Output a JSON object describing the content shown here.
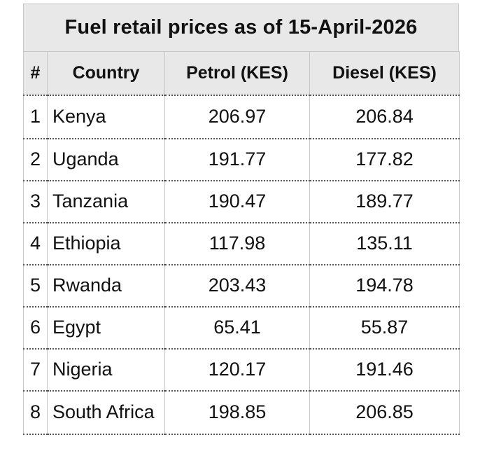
{
  "chart_data": {
    "type": "table",
    "title": "Fuel retail prices as of 15-April-2026",
    "columns": [
      "#",
      "Country",
      "Petrol (KES)",
      "Diesel (KES)"
    ],
    "rows": [
      [
        "1",
        "Kenya",
        "206.97",
        "206.84"
      ],
      [
        "2",
        "Uganda",
        "191.77",
        "177.82"
      ],
      [
        "3",
        "Tanzania",
        "190.47",
        "189.77"
      ],
      [
        "4",
        "Ethiopia",
        "117.98",
        "135.11"
      ],
      [
        "5",
        "Rwanda",
        "203.43",
        "194.78"
      ],
      [
        "6",
        "Egypt",
        "65.41",
        "55.87"
      ],
      [
        "7",
        "Nigeria",
        "120.17",
        "191.46"
      ],
      [
        "8",
        "South Africa",
        "198.85",
        "206.85"
      ]
    ]
  },
  "colors": {
    "header_background": "#e8e8e8",
    "border": "#c8c8c8",
    "row_divider": "#555555"
  }
}
